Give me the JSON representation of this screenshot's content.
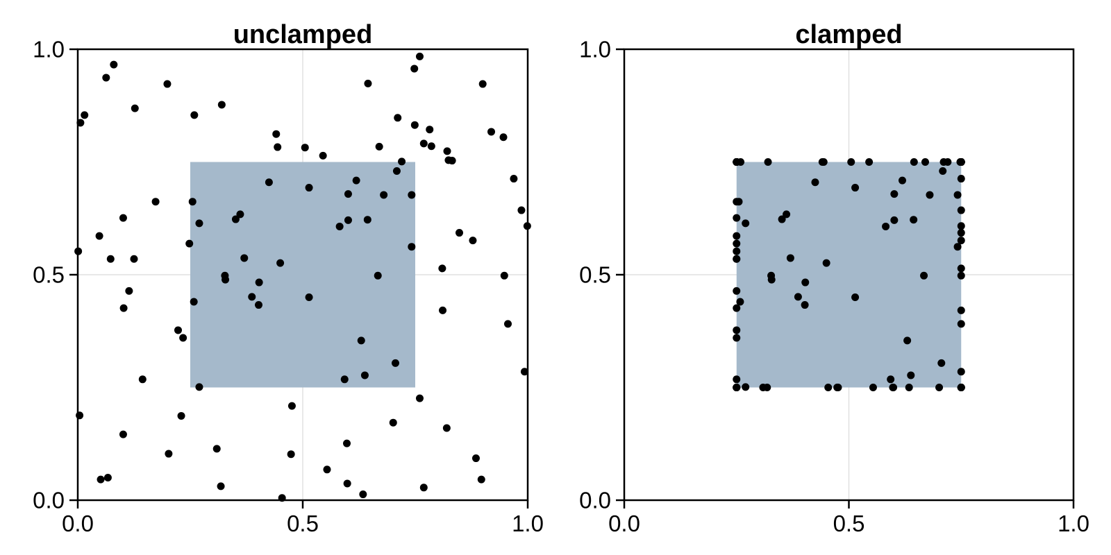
{
  "figure": {
    "background": "#ffffff",
    "point_color": "#000000",
    "grid_color": "#e0e0e0",
    "spine_color": "#000000",
    "region_fill": "#a5b9cb"
  },
  "chart_data": [
    {
      "type": "scatter",
      "title": "unclamped",
      "xlabel": "",
      "ylabel": "",
      "xlim": [
        0.0,
        1.0
      ],
      "ylim": [
        0.0,
        1.0
      ],
      "xticks": [
        0.0,
        0.5,
        1.0
      ],
      "xtick_labels": [
        "0.0",
        "0.5",
        "1.0"
      ],
      "yticks": [
        0.0,
        0.5,
        1.0
      ],
      "ytick_labels": [
        "0.0",
        "0.5",
        "1.0"
      ],
      "grid": {
        "x": [
          0.5
        ],
        "y": [
          0.5
        ]
      },
      "legend": null,
      "clamp_region": {
        "x0": 0.25,
        "x1": 0.75,
        "y0": 0.25,
        "y1": 0.75
      },
      "point_radius": 5.5,
      "points": [
        [
          0.08,
          0.966
        ],
        [
          0.063,
          0.937
        ],
        [
          0.199,
          0.923
        ],
        [
          0.127,
          0.869
        ],
        [
          0.015,
          0.854
        ],
        [
          0.006,
          0.837
        ],
        [
          0.259,
          0.854
        ],
        [
          0.32,
          0.877
        ],
        [
          0.441,
          0.812
        ],
        [
          0.444,
          0.783
        ],
        [
          0.505,
          0.782
        ],
        [
          0.425,
          0.705
        ],
        [
          0.173,
          0.662
        ],
        [
          0.255,
          0.662
        ],
        [
          0.101,
          0.626
        ],
        [
          0.361,
          0.634
        ],
        [
          0.351,
          0.623
        ],
        [
          0.27,
          0.614
        ],
        [
          0.048,
          0.586
        ],
        [
          0.248,
          0.569
        ],
        [
          0.001,
          0.552
        ],
        [
          0.073,
          0.535
        ],
        [
          0.125,
          0.535
        ],
        [
          0.37,
          0.537
        ],
        [
          0.45,
          0.526
        ],
        [
          0.327,
          0.498
        ],
        [
          0.67,
          0.784
        ],
        [
          0.76,
          0.984
        ],
        [
          0.748,
          0.957
        ],
        [
          0.645,
          0.924
        ],
        [
          0.9,
          0.923
        ],
        [
          0.711,
          0.848
        ],
        [
          0.749,
          0.832
        ],
        [
          0.782,
          0.822
        ],
        [
          0.919,
          0.817
        ],
        [
          0.946,
          0.805
        ],
        [
          0.769,
          0.791
        ],
        [
          0.786,
          0.785
        ],
        [
          0.821,
          0.774
        ],
        [
          0.545,
          0.764
        ],
        [
          0.824,
          0.754
        ],
        [
          0.832,
          0.753
        ],
        [
          0.72,
          0.751
        ],
        [
          0.709,
          0.73
        ],
        [
          0.969,
          0.713
        ],
        [
          0.619,
          0.709
        ],
        [
          0.514,
          0.693
        ],
        [
          0.601,
          0.679
        ],
        [
          0.68,
          0.677
        ],
        [
          0.742,
          0.677
        ],
        [
          0.986,
          0.643
        ],
        [
          0.999,
          0.608
        ],
        [
          0.601,
          0.621
        ],
        [
          0.644,
          0.622
        ],
        [
          0.582,
          0.607
        ],
        [
          0.848,
          0.593
        ],
        [
          0.878,
          0.576
        ],
        [
          0.742,
          0.562
        ],
        [
          0.81,
          0.514
        ],
        [
          0.667,
          0.498
        ],
        [
          0.948,
          0.498
        ],
        [
          0.114,
          0.464
        ],
        [
          0.102,
          0.426
        ],
        [
          0.328,
          0.489
        ],
        [
          0.403,
          0.483
        ],
        [
          0.387,
          0.451
        ],
        [
          0.402,
          0.433
        ],
        [
          0.258,
          0.44
        ],
        [
          0.223,
          0.377
        ],
        [
          0.234,
          0.36
        ],
        [
          0.144,
          0.268
        ],
        [
          0.27,
          0.251
        ],
        [
          0.004,
          0.188
        ],
        [
          0.23,
          0.187
        ],
        [
          0.476,
          0.209
        ],
        [
          0.101,
          0.146
        ],
        [
          0.202,
          0.103
        ],
        [
          0.309,
          0.114
        ],
        [
          0.474,
          0.102
        ],
        [
          0.051,
          0.046
        ],
        [
          0.067,
          0.05
        ],
        [
          0.318,
          0.031
        ],
        [
          0.454,
          0.005
        ],
        [
          0.514,
          0.45
        ],
        [
          0.811,
          0.421
        ],
        [
          0.956,
          0.391
        ],
        [
          0.63,
          0.354
        ],
        [
          0.706,
          0.304
        ],
        [
          0.638,
          0.277
        ],
        [
          0.593,
          0.268
        ],
        [
          0.993,
          0.285
        ],
        [
          0.76,
          0.226
        ],
        [
          0.701,
          0.172
        ],
        [
          0.82,
          0.16
        ],
        [
          0.598,
          0.126
        ],
        [
          0.885,
          0.093
        ],
        [
          0.554,
          0.068
        ],
        [
          0.599,
          0.037
        ],
        [
          0.897,
          0.046
        ],
        [
          0.769,
          0.028
        ],
        [
          0.634,
          0.013
        ]
      ]
    },
    {
      "type": "scatter",
      "title": "clamped",
      "xlabel": "",
      "ylabel": "",
      "xlim": [
        0.0,
        1.0
      ],
      "ylim": [
        0.0,
        1.0
      ],
      "xticks": [
        0.0,
        0.5,
        1.0
      ],
      "xtick_labels": [
        "0.0",
        "0.5",
        "1.0"
      ],
      "yticks": [
        0.0,
        0.5,
        1.0
      ],
      "ytick_labels": [
        "0.0",
        "0.5",
        "1.0"
      ],
      "grid": {
        "x": [
          0.5
        ],
        "y": [
          0.5
        ]
      },
      "legend": null,
      "clamp_region": {
        "x0": 0.25,
        "x1": 0.75,
        "y0": 0.25,
        "y1": 0.75
      },
      "point_radius": 5.5,
      "points": [
        [
          0.25,
          0.75
        ],
        [
          0.25,
          0.75
        ],
        [
          0.25,
          0.75
        ],
        [
          0.25,
          0.75
        ],
        [
          0.25,
          0.75
        ],
        [
          0.25,
          0.75
        ],
        [
          0.259,
          0.75
        ],
        [
          0.32,
          0.75
        ],
        [
          0.441,
          0.75
        ],
        [
          0.444,
          0.75
        ],
        [
          0.505,
          0.75
        ],
        [
          0.425,
          0.705
        ],
        [
          0.25,
          0.662
        ],
        [
          0.255,
          0.662
        ],
        [
          0.25,
          0.626
        ],
        [
          0.361,
          0.634
        ],
        [
          0.351,
          0.623
        ],
        [
          0.27,
          0.614
        ],
        [
          0.25,
          0.586
        ],
        [
          0.25,
          0.569
        ],
        [
          0.25,
          0.552
        ],
        [
          0.25,
          0.535
        ],
        [
          0.25,
          0.535
        ],
        [
          0.37,
          0.537
        ],
        [
          0.45,
          0.526
        ],
        [
          0.327,
          0.498
        ],
        [
          0.67,
          0.75
        ],
        [
          0.75,
          0.75
        ],
        [
          0.748,
          0.75
        ],
        [
          0.645,
          0.75
        ],
        [
          0.75,
          0.75
        ],
        [
          0.711,
          0.75
        ],
        [
          0.749,
          0.75
        ],
        [
          0.75,
          0.75
        ],
        [
          0.75,
          0.75
        ],
        [
          0.75,
          0.75
        ],
        [
          0.75,
          0.75
        ],
        [
          0.75,
          0.75
        ],
        [
          0.75,
          0.75
        ],
        [
          0.545,
          0.75
        ],
        [
          0.75,
          0.75
        ],
        [
          0.75,
          0.75
        ],
        [
          0.72,
          0.75
        ],
        [
          0.709,
          0.73
        ],
        [
          0.75,
          0.713
        ],
        [
          0.619,
          0.709
        ],
        [
          0.514,
          0.693
        ],
        [
          0.601,
          0.679
        ],
        [
          0.68,
          0.677
        ],
        [
          0.742,
          0.677
        ],
        [
          0.75,
          0.643
        ],
        [
          0.75,
          0.608
        ],
        [
          0.601,
          0.621
        ],
        [
          0.644,
          0.622
        ],
        [
          0.582,
          0.607
        ],
        [
          0.75,
          0.593
        ],
        [
          0.75,
          0.576
        ],
        [
          0.742,
          0.562
        ],
        [
          0.75,
          0.514
        ],
        [
          0.667,
          0.498
        ],
        [
          0.75,
          0.498
        ],
        [
          0.25,
          0.464
        ],
        [
          0.25,
          0.426
        ],
        [
          0.328,
          0.489
        ],
        [
          0.403,
          0.483
        ],
        [
          0.387,
          0.451
        ],
        [
          0.402,
          0.433
        ],
        [
          0.258,
          0.44
        ],
        [
          0.25,
          0.377
        ],
        [
          0.25,
          0.36
        ],
        [
          0.25,
          0.268
        ],
        [
          0.27,
          0.251
        ],
        [
          0.25,
          0.25
        ],
        [
          0.25,
          0.25
        ],
        [
          0.476,
          0.25
        ],
        [
          0.25,
          0.25
        ],
        [
          0.25,
          0.25
        ],
        [
          0.309,
          0.25
        ],
        [
          0.474,
          0.25
        ],
        [
          0.25,
          0.25
        ],
        [
          0.25,
          0.25
        ],
        [
          0.318,
          0.25
        ],
        [
          0.454,
          0.25
        ],
        [
          0.514,
          0.45
        ],
        [
          0.75,
          0.421
        ],
        [
          0.75,
          0.391
        ],
        [
          0.63,
          0.354
        ],
        [
          0.706,
          0.304
        ],
        [
          0.638,
          0.277
        ],
        [
          0.593,
          0.268
        ],
        [
          0.75,
          0.285
        ],
        [
          0.75,
          0.25
        ],
        [
          0.701,
          0.25
        ],
        [
          0.75,
          0.25
        ],
        [
          0.598,
          0.25
        ],
        [
          0.75,
          0.25
        ],
        [
          0.554,
          0.25
        ],
        [
          0.599,
          0.25
        ],
        [
          0.75,
          0.25
        ],
        [
          0.75,
          0.25
        ],
        [
          0.634,
          0.25
        ]
      ]
    }
  ]
}
